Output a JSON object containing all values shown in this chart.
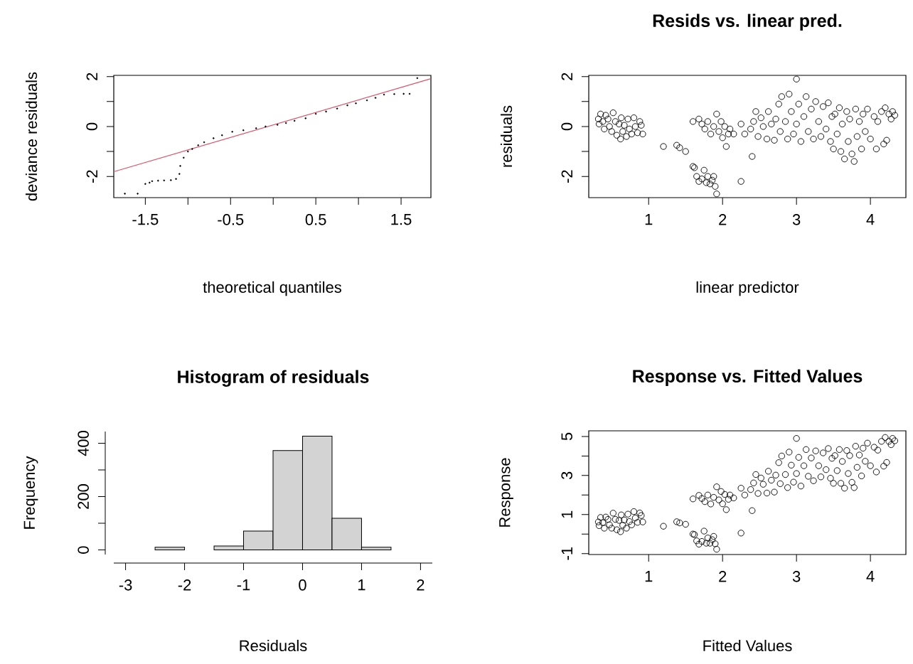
{
  "chart_data": [
    {
      "type": "scatter",
      "xlabel": "theoretical quantiles",
      "ylabel": "deviance residuals",
      "xlim": [
        -1.87,
        1.85
      ],
      "ylim": [
        -2.85,
        2.05
      ],
      "xticks": [
        -1.5,
        {
          "value": -1,
          "label": null
        },
        -0.5,
        {
          "value": 0,
          "label": null
        },
        0.5,
        {
          "value": 1,
          "label": null
        },
        1.5
      ],
      "yticks": [
        -2,
        {
          "value": -1,
          "label": null
        },
        0,
        {
          "value": 1,
          "label": null
        },
        2
      ],
      "grid": false,
      "series": [
        {
          "color": "#000000",
          "marker": "circle",
          "x": [
            -1.74,
            -1.59,
            -1.5,
            -1.45,
            -1.42,
            -1.35,
            -1.28,
            -1.2,
            -1.14,
            -1.1,
            -1.09,
            -1.05,
            -1.0,
            -0.95,
            -0.88,
            -0.81,
            -0.7,
            -0.6,
            -0.48,
            -0.35,
            -0.2,
            -0.09,
            0.05,
            0.15,
            0.25,
            0.38,
            0.5,
            0.62,
            0.75,
            0.87,
            0.97,
            1.1,
            1.2,
            1.3,
            1.42,
            1.53,
            1.6,
            1.69
          ],
          "values": [
            -2.69,
            -2.69,
            -2.3,
            -2.25,
            -2.19,
            -2.17,
            -2.16,
            -2.15,
            -2.1,
            -1.9,
            -1.58,
            -1.25,
            -1.0,
            -0.9,
            -0.75,
            -0.63,
            -0.47,
            -0.35,
            -0.21,
            -0.15,
            -0.07,
            0.0,
            0.07,
            0.14,
            0.23,
            0.33,
            0.51,
            0.6,
            0.72,
            0.85,
            0.93,
            1.05,
            1.15,
            1.28,
            1.3,
            1.31,
            1.31,
            1.94
          ]
        },
        {
          "type": "line",
          "marker": "none",
          "color": "#df536b",
          "x": [
            -1.87,
            1.85
          ],
          "values": [
            -1.81,
            1.92
          ]
        }
      ]
    },
    {
      "type": "scatter",
      "title": "Resids vs. linear pred.",
      "xlabel": "linear predictor",
      "ylabel": "residuals",
      "xlim": [
        0.19,
        4.48
      ],
      "ylim": [
        -2.85,
        2.05
      ],
      "xticks": [
        1,
        2,
        3,
        4
      ],
      "yticks": [
        -2,
        {
          "value": -1,
          "label": null
        },
        0,
        {
          "value": 1,
          "label": null
        },
        2
      ],
      "grid": false,
      "series": [
        {
          "color": "#000000",
          "marker": "circle",
          "x": [
            0.32,
            0.33,
            0.35,
            0.38,
            0.4,
            0.42,
            0.45,
            0.47,
            0.5,
            0.52,
            0.55,
            0.57,
            0.6,
            0.62,
            0.63,
            0.65,
            0.67,
            0.7,
            0.72,
            0.74,
            0.77,
            0.8,
            0.82,
            0.85,
            0.88,
            0.9,
            0.92,
            1.2,
            1.38,
            1.42,
            1.5,
            1.6,
            1.62,
            1.65,
            1.68,
            1.72,
            1.75,
            1.78,
            1.8,
            1.83,
            1.86,
            1.9,
            1.92,
            1.88,
            2.25,
            1.6,
            1.68,
            1.72,
            1.76,
            1.8,
            1.84,
            1.88,
            1.92,
            1.95,
            1.98,
            2.0,
            2.03,
            2.05,
            2.08,
            2.1,
            2.15,
            2.25,
            2.3,
            2.4,
            2.45,
            2.38,
            2.42,
            2.48,
            2.52,
            2.55,
            2.6,
            2.62,
            2.66,
            2.7,
            2.72,
            2.76,
            2.78,
            2.8,
            2.85,
            2.88,
            2.9,
            2.93,
            2.96,
            3.0,
            3.0,
            3.03,
            3.06,
            3.1,
            3.13,
            3.16,
            3.2,
            3.23,
            3.26,
            3.3,
            3.33,
            3.36,
            3.4,
            3.43,
            3.46,
            3.48,
            3.5,
            3.52,
            3.55,
            3.58,
            3.6,
            3.62,
            3.65,
            3.68,
            3.7,
            3.72,
            3.75,
            3.78,
            3.8,
            3.82,
            3.85,
            3.88,
            3.9,
            3.93,
            3.96,
            4.0,
            4.05,
            4.08,
            4.1,
            4.15,
            4.18,
            4.2,
            4.22,
            4.25,
            4.28,
            4.3,
            4.33
          ],
          "values": [
            0.3,
            0.1,
            0.5,
            0.2,
            -0.1,
            0.45,
            0.3,
            0.0,
            -0.2,
            0.55,
            0.2,
            -0.35,
            0.1,
            -0.5,
            0.35,
            -0.2,
            0.05,
            -0.4,
            0.3,
            -0.1,
            -0.3,
            0.35,
            0.0,
            -0.25,
            0.2,
            0.05,
            -0.3,
            -0.8,
            -0.75,
            -0.85,
            -1.0,
            -1.6,
            -1.65,
            -2.0,
            -2.2,
            -2.1,
            -1.75,
            -2.25,
            -2.0,
            -2.3,
            -2.15,
            -2.4,
            -2.7,
            -2.0,
            -2.2,
            0.2,
            0.3,
            0.1,
            -0.1,
            0.2,
            -0.3,
            0.0,
            0.5,
            -0.2,
            0.2,
            -0.45,
            0.0,
            -0.8,
            -0.3,
            -0.1,
            -0.3,
            0.1,
            -0.3,
            -1.2,
            0.6,
            -0.1,
            0.2,
            -0.4,
            0.35,
            0.0,
            -0.5,
            0.6,
            0.1,
            -0.55,
            0.3,
            0.9,
            -0.2,
            1.2,
            0.2,
            -0.5,
            1.3,
            0.6,
            -0.3,
            1.9,
            0.1,
            0.9,
            -0.6,
            0.4,
            1.2,
            -0.2,
            0.7,
            -0.5,
            1.0,
            0.2,
            -0.4,
            0.8,
            -0.1,
            0.95,
            -0.6,
            0.4,
            -0.9,
            0.5,
            -0.3,
            0.75,
            -1.0,
            0.1,
            -1.3,
            0.6,
            -0.6,
            0.3,
            -1.1,
            -1.4,
            0.7,
            -0.4,
            0.2,
            -0.9,
            0.5,
            -0.2,
            0.7,
            -0.5,
            0.4,
            -0.9,
            0.2,
            0.6,
            -0.7,
            0.75,
            -0.55,
            0.5,
            0.3,
            0.6,
            0.45
          ]
        }
      ]
    },
    {
      "type": "histogram",
      "title": "Histogram of residuals",
      "xlabel": "Residuals",
      "ylabel": "Frequency",
      "xlim": [
        -3.2,
        2.2
      ],
      "ylim": [
        -17,
        444
      ],
      "xticks": [
        -3,
        -2,
        -1,
        0,
        1,
        2
      ],
      "yticks": [
        0,
        {
          "value": 100,
          "label": null
        },
        200,
        {
          "value": 300,
          "label": null
        },
        400
      ],
      "grid": false,
      "color": "#d3d3d3",
      "bins": [
        -3,
        -2.5,
        -2,
        -1.5,
        -1,
        -0.5,
        0,
        0.5,
        1,
        1.5,
        2
      ],
      "values": [
        0,
        10,
        0,
        15,
        71,
        373,
        427,
        119,
        10,
        0
      ]
    },
    {
      "type": "scatter",
      "title": "Response vs. Fitted Values",
      "xlabel": "Fitted Values",
      "ylabel": "Response",
      "xlim": [
        0.19,
        4.48
      ],
      "ylim": [
        -1.05,
        5.29
      ],
      "xticks": [
        1,
        2,
        3,
        4
      ],
      "yticks": [
        -1,
        {
          "value": 0,
          "label": null
        },
        1,
        {
          "value": 2,
          "label": null
        },
        3,
        {
          "value": 4,
          "label": null
        },
        5
      ],
      "grid": false,
      "series": [
        {
          "color": "#000000",
          "marker": "circle",
          "x": [
            0.32,
            0.33,
            0.35,
            0.38,
            0.4,
            0.42,
            0.45,
            0.47,
            0.5,
            0.52,
            0.55,
            0.57,
            0.6,
            0.62,
            0.63,
            0.65,
            0.67,
            0.7,
            0.72,
            0.74,
            0.77,
            0.8,
            0.82,
            0.85,
            0.88,
            0.9,
            0.92,
            1.2,
            1.38,
            1.42,
            1.5,
            1.6,
            1.62,
            1.65,
            1.68,
            1.72,
            1.75,
            1.78,
            1.8,
            1.83,
            1.86,
            1.9,
            1.92,
            1.88,
            2.25,
            1.6,
            1.68,
            1.72,
            1.76,
            1.8,
            1.84,
            1.88,
            1.92,
            1.95,
            1.98,
            2.0,
            2.03,
            2.05,
            2.08,
            2.1,
            2.15,
            2.25,
            2.3,
            2.4,
            2.45,
            2.38,
            2.42,
            2.48,
            2.52,
            2.55,
            2.6,
            2.62,
            2.66,
            2.7,
            2.72,
            2.76,
            2.78,
            2.8,
            2.85,
            2.88,
            2.9,
            2.93,
            2.96,
            3.0,
            3.0,
            3.03,
            3.06,
            3.1,
            3.13,
            3.16,
            3.2,
            3.23,
            3.26,
            3.3,
            3.33,
            3.36,
            3.4,
            3.43,
            3.46,
            3.48,
            3.5,
            3.52,
            3.55,
            3.58,
            3.6,
            3.62,
            3.65,
            3.68,
            3.7,
            3.72,
            3.75,
            3.78,
            3.8,
            3.82,
            3.85,
            3.88,
            3.9,
            3.93,
            3.96,
            4.0,
            4.05,
            4.08,
            4.1,
            4.15,
            4.18,
            4.2,
            4.22,
            4.25,
            4.28,
            4.3,
            4.33
          ],
          "values": [
            0.62,
            0.43,
            0.85,
            0.58,
            0.3,
            0.87,
            0.75,
            0.47,
            0.3,
            1.07,
            0.75,
            0.22,
            0.7,
            0.12,
            0.98,
            0.45,
            0.72,
            0.3,
            1.02,
            0.64,
            0.47,
            1.15,
            0.82,
            0.6,
            1.08,
            0.95,
            0.62,
            0.4,
            0.63,
            0.57,
            0.5,
            0.0,
            -0.03,
            -0.35,
            -0.52,
            -0.38,
            0.15,
            -0.47,
            -0.2,
            -0.47,
            -0.29,
            -0.5,
            -0.78,
            -0.12,
            0.05,
            1.8,
            1.98,
            1.82,
            1.66,
            2.0,
            1.54,
            1.88,
            2.42,
            1.75,
            2.18,
            1.55,
            2.03,
            1.25,
            1.78,
            2.0,
            1.85,
            2.35,
            2.0,
            1.2,
            3.05,
            2.28,
            2.62,
            2.08,
            2.87,
            2.55,
            2.1,
            3.22,
            2.76,
            2.15,
            3.02,
            3.66,
            2.58,
            4.0,
            3.05,
            2.38,
            4.2,
            3.53,
            2.66,
            4.9,
            3.1,
            3.93,
            2.46,
            3.5,
            4.33,
            2.96,
            3.9,
            2.73,
            4.26,
            3.5,
            2.93,
            4.16,
            3.3,
            4.38,
            2.86,
            3.88,
            2.6,
            4.02,
            3.25,
            4.33,
            2.6,
            3.72,
            2.35,
            4.28,
            3.1,
            4.02,
            2.65,
            2.38,
            4.5,
            3.42,
            4.05,
            2.98,
            4.4,
            3.73,
            4.66,
            3.5,
            4.45,
            3.18,
            4.3,
            4.75,
            3.48,
            4.95,
            3.67,
            4.75,
            4.58,
            4.9,
            4.78
          ]
        }
      ]
    }
  ]
}
